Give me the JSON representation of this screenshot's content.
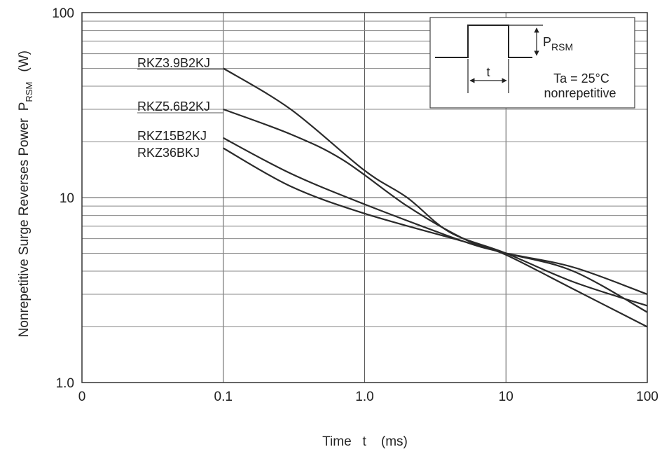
{
  "chart_data": {
    "type": "line",
    "xlabel": "Time   t    (ms)",
    "ylabel_main": "Nonrepetitive Surge Reverses Power  P",
    "ylabel_sub": "RSM",
    "ylabel_unit": "(W)",
    "x_scale": "log",
    "y_scale": "log",
    "xlim": [
      0.01,
      100
    ],
    "ylim": [
      1,
      100
    ],
    "x_ticks": [
      {
        "value": 0.01,
        "label": "0"
      },
      {
        "value": 0.1,
        "label": "0.1"
      },
      {
        "value": 1,
        "label": "1.0"
      },
      {
        "value": 10,
        "label": "10"
      },
      {
        "value": 100,
        "label": "100"
      }
    ],
    "y_ticks": [
      {
        "value": 1,
        "label": "1.0"
      },
      {
        "value": 10,
        "label": "10"
      },
      {
        "value": 100,
        "label": "100"
      }
    ],
    "grid": true,
    "series": [
      {
        "name": "RKZ3.9B2KJ",
        "points": [
          [
            0.1,
            50
          ],
          [
            0.3,
            30
          ],
          [
            1,
            14
          ],
          [
            2,
            10
          ],
          [
            4,
            6.5
          ],
          [
            10,
            5
          ],
          [
            30,
            3.5
          ],
          [
            100,
            2.6
          ]
        ]
      },
      {
        "name": "RKZ5.6B2KJ",
        "points": [
          [
            0.1,
            30
          ],
          [
            0.3,
            22
          ],
          [
            0.7,
            16
          ],
          [
            2,
            9
          ],
          [
            5,
            6
          ],
          [
            10,
            4.9
          ],
          [
            30,
            3.2
          ],
          [
            100,
            2.0
          ]
        ]
      },
      {
        "name": "RKZ15B2KJ",
        "points": [
          [
            0.1,
            21
          ],
          [
            0.3,
            13.5
          ],
          [
            1,
            9.2
          ],
          [
            5,
            5.8
          ],
          [
            10,
            5.0
          ],
          [
            30,
            4.0
          ],
          [
            100,
            2.4
          ]
        ]
      },
      {
        "name": "RKZ36BKJ",
        "points": [
          [
            0.1,
            18.5
          ],
          [
            0.3,
            11.5
          ],
          [
            1,
            8.2
          ],
          [
            5,
            5.8
          ],
          [
            10,
            5.0
          ],
          [
            30,
            4.2
          ],
          [
            100,
            3.0
          ]
        ]
      }
    ],
    "inset": {
      "symbol_main": "P",
      "symbol_sub": "RSM",
      "pulse_width_label": "t",
      "condition_line1": "Ta = 25°C",
      "condition_line2": "nonrepetitive"
    }
  }
}
